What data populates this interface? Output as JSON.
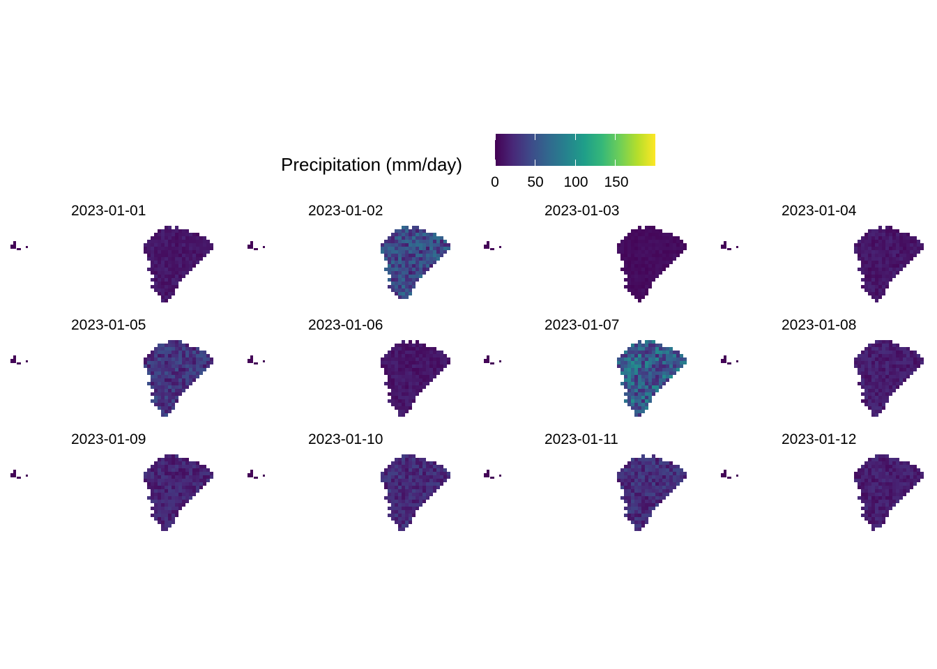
{
  "legend": {
    "title": "Precipitation (mm/day)",
    "ticks": [
      "0",
      "50",
      "100",
      "150"
    ],
    "tick_values": [
      0,
      50,
      100,
      150
    ],
    "range": [
      0,
      200
    ],
    "palette": [
      "#440154",
      "#482878",
      "#3e4a89",
      "#31688e",
      "#26828e",
      "#1f9e89",
      "#35b779",
      "#6ece58",
      "#b5de2b",
      "#fde725"
    ]
  },
  "chart_data": {
    "type": "heatmap",
    "facet_layout": "3 rows x 4 columns",
    "legend_placement": "top",
    "value_unit": "mm/day",
    "panels": [
      {
        "title": "2023-01-01",
        "intensity": 0.06
      },
      {
        "title": "2023-01-02",
        "intensity": 0.22
      },
      {
        "title": "2023-01-03",
        "intensity": 0.03
      },
      {
        "title": "2023-01-04",
        "intensity": 0.06
      },
      {
        "title": "2023-01-05",
        "intensity": 0.15
      },
      {
        "title": "2023-01-06",
        "intensity": 0.06
      },
      {
        "title": "2023-01-07",
        "intensity": 0.3
      },
      {
        "title": "2023-01-08",
        "intensity": 0.08
      },
      {
        "title": "2023-01-09",
        "intensity": 0.1
      },
      {
        "title": "2023-01-10",
        "intensity": 0.12
      },
      {
        "title": "2023-01-11",
        "intensity": 0.13
      },
      {
        "title": "2023-01-12",
        "intensity": 0.08
      }
    ]
  }
}
